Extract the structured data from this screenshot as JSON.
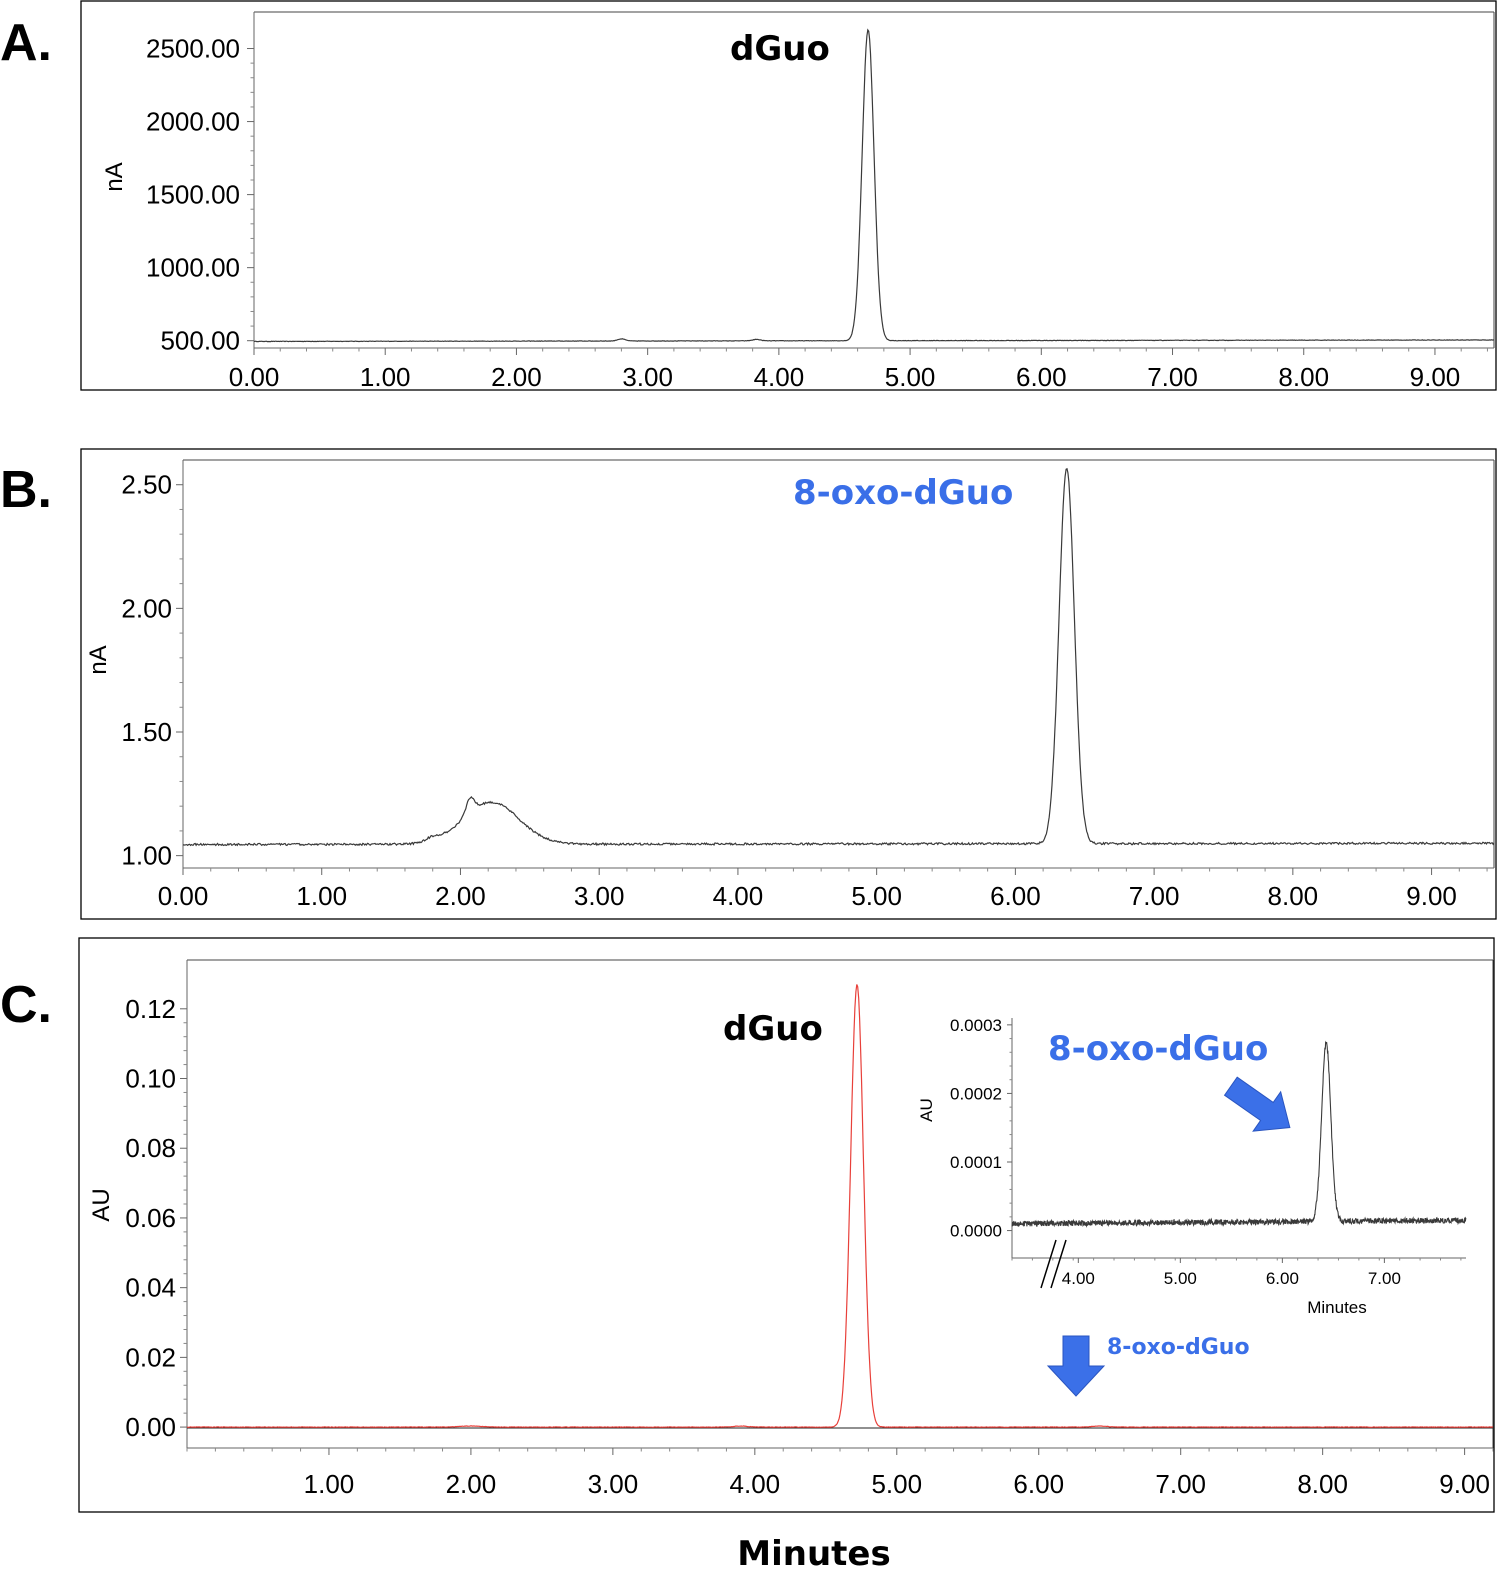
{
  "figure": {
    "x_title": "Minutes"
  },
  "colors": {
    "trace_ab": "#3a3a3a",
    "trace_c": "#e8403a",
    "annotation_blue": "#3a6fe8",
    "arrow_blue": "#3b70e8"
  },
  "chart_data": [
    {
      "id": "A",
      "type": "line",
      "panel_label": "A.",
      "ylabel": "nA",
      "peak_label": "dGuo",
      "xlim": [
        0,
        9.45
      ],
      "ylim": [
        450,
        2750
      ],
      "xticks": [
        0,
        1,
        2,
        3,
        4,
        5,
        6,
        7,
        8,
        9
      ],
      "xtick_labels": [
        "0.00",
        "1.00",
        "2.00",
        "3.00",
        "4.00",
        "5.00",
        "6.00",
        "7.00",
        "8.00",
        "9.00"
      ],
      "yticks": [
        500,
        1000,
        1500,
        2000,
        2500
      ],
      "ytick_labels": [
        "500.00",
        "1000.00",
        "1500.00",
        "2000.00",
        "2500.00"
      ],
      "series": [
        {
          "baseline": 495,
          "baseline_end": 505,
          "peaks": [
            {
              "x": 4.68,
              "height": 2130,
              "width": 0.045
            },
            {
              "x": 2.8,
              "height": 14,
              "width": 0.03
            },
            {
              "x": 3.83,
              "height": 10,
              "width": 0.03
            }
          ],
          "noise": 1.5
        }
      ]
    },
    {
      "id": "B",
      "type": "line",
      "panel_label": "B.",
      "ylabel": "nA",
      "peak_label": "8-oxo-dGuo",
      "xlim": [
        0,
        9.45
      ],
      "ylim": [
        0.95,
        2.6
      ],
      "xticks": [
        0,
        1,
        2,
        3,
        4,
        5,
        6,
        7,
        8,
        9
      ],
      "xtick_labels": [
        "0.00",
        "1.00",
        "2.00",
        "3.00",
        "4.00",
        "5.00",
        "6.00",
        "7.00",
        "8.00",
        "9.00"
      ],
      "yticks": [
        1.0,
        1.5,
        2.0,
        2.5
      ],
      "ytick_labels": [
        "1.00",
        "1.50",
        "2.00",
        "2.50"
      ],
      "series": [
        {
          "baseline": 1.045,
          "baseline_end": 1.05,
          "peaks": [
            {
              "x": 6.37,
              "height": 1.52,
              "width": 0.055
            },
            {
              "x": 2.22,
              "height": 0.17,
              "width": 0.2
            },
            {
              "x": 2.07,
              "height": 0.06,
              "width": 0.03
            },
            {
              "x": 1.8,
              "height": 0.015,
              "width": 0.05
            }
          ],
          "noise": 0.004
        }
      ]
    },
    {
      "id": "C",
      "type": "line",
      "panel_label": "C.",
      "ylabel": "AU",
      "peak_label": "dGuo",
      "arrow_label": "8-oxo-dGuo",
      "xlim": [
        0.0,
        9.2
      ],
      "ylim": [
        -0.006,
        0.134
      ],
      "xticks": [
        1,
        2,
        3,
        4,
        5,
        6,
        7,
        8,
        9
      ],
      "xtick_labels": [
        "1.00",
        "2.00",
        "3.00",
        "4.00",
        "5.00",
        "6.00",
        "7.00",
        "8.00",
        "9.00"
      ],
      "yticks": [
        0.0,
        0.02,
        0.04,
        0.06,
        0.08,
        0.1,
        0.12
      ],
      "ytick_labels": [
        "0.00",
        "0.02",
        "0.04",
        "0.06",
        "0.08",
        "0.10",
        "0.12"
      ],
      "series": [
        {
          "baseline": 0.0,
          "baseline_end": 0.0,
          "peaks": [
            {
              "x": 4.72,
              "height": 0.127,
              "width": 0.045
            },
            {
              "x": 6.43,
              "height": 0.0003,
              "width": 0.05
            },
            {
              "x": 2.0,
              "height": 0.0003,
              "width": 0.08
            },
            {
              "x": 3.9,
              "height": 0.0003,
              "width": 0.05
            }
          ],
          "noise": 6e-05
        }
      ],
      "inset": {
        "type": "line",
        "ylabel": "AU",
        "xlabel": "Minutes",
        "peak_label": "8-oxo-dGuo",
        "xlim": [
          3.35,
          7.8
        ],
        "ylim": [
          -4e-05,
          0.00031
        ],
        "xticks": [
          4,
          5,
          6,
          7
        ],
        "xtick_labels": [
          "4.00",
          "5.00",
          "6.00",
          "7.00"
        ],
        "yticks": [
          0.0,
          0.0001,
          0.0002,
          0.0003
        ],
        "ytick_labels": [
          "0.0000",
          "0.0001",
          "0.0002",
          "0.0003"
        ],
        "axis_break": true,
        "series": [
          {
            "baseline": 1e-05,
            "baseline_end": 1.5e-05,
            "peaks": [
              {
                "x": 6.43,
                "height": 0.00026,
                "width": 0.045
              }
            ],
            "noise": 4e-06
          }
        ]
      }
    }
  ]
}
